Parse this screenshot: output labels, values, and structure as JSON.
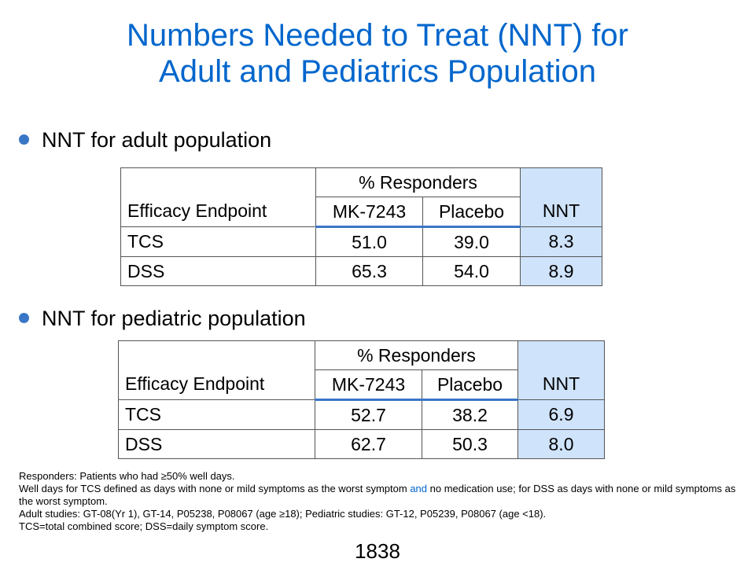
{
  "slide": {
    "title_line1": "Numbers Needed to Treat (NNT) for",
    "title_line2": "Adult and Pediatrics Population",
    "accent_color": "#0066cc",
    "nnt_fill_color": "#cfe3fb"
  },
  "adult": {
    "bullet": "NNT for adult population",
    "table": {
      "header_endpoint": "Efficacy Endpoint",
      "header_responders": "% Responders",
      "header_drug": "MK-7243",
      "header_placebo": "Placebo",
      "header_nnt": "NNT",
      "rows": [
        {
          "endpoint": "TCS",
          "drug": "51.0",
          "placebo": "39.0",
          "nnt": "8.3"
        },
        {
          "endpoint": "DSS",
          "drug": "65.3",
          "placebo": "54.0",
          "nnt": "8.9"
        }
      ]
    }
  },
  "pediatric": {
    "bullet": "NNT for pediatric population",
    "table": {
      "header_endpoint": "Efficacy Endpoint",
      "header_responders": "% Responders",
      "header_drug": "MK-7243",
      "header_placebo": "Placebo",
      "header_nnt": "NNT",
      "rows": [
        {
          "endpoint": "TCS",
          "drug": "52.7",
          "placebo": "38.2",
          "nnt": "6.9"
        },
        {
          "endpoint": "DSS",
          "drug": "62.7",
          "placebo": "50.3",
          "nnt": "8.0"
        }
      ]
    }
  },
  "footnotes": {
    "line1": "Responders: Patients who had ≥50% well days.",
    "line2_part1": "Well days for TCS defined as days with none or mild symptoms as the worst symptom ",
    "line2_and": "and",
    "line2_part2": " no medication use; for DSS as days with none or mild symptoms as the worst symptom.",
    "line3": "Adult studies: GT-08(Yr  1), GT-14, P05238, P08067 (age ≥18); Pediatric studies: GT-12, P05239, P08067 (age <18).",
    "line4": "TCS=total combined score; DSS=daily symptom score."
  },
  "page_number": "1838"
}
